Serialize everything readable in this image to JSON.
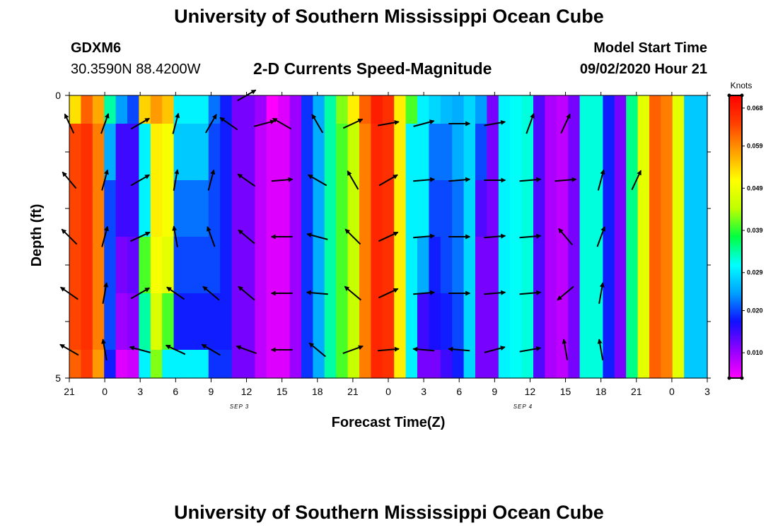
{
  "header": {
    "title": "University of Southern Mississippi Ocean Cube",
    "station_id": "GDXM6",
    "coordinates": "30.3590N 88.4200W",
    "plot_title": "2-D Currents Speed-Magnitude",
    "model_start_label": "Model Start Time",
    "model_start_value": "09/02/2020 Hour 21"
  },
  "footer": {
    "title": "University of Southern Mississippi Ocean Cube"
  },
  "chart_data": {
    "type": "heatmap",
    "title": "2-D Currents Speed-Magnitude",
    "xlabel": "Forecast Time(Z)",
    "ylabel": "Depth (ft)",
    "x_tick_labels": [
      "21",
      "0",
      "3",
      "6",
      "9",
      "12",
      "15",
      "18",
      "21",
      "0",
      "3",
      "6",
      "9",
      "12",
      "15",
      "18",
      "21",
      "0",
      "3"
    ],
    "date_labels": [
      {
        "label": "SEP 3",
        "tick_index": 4.8
      },
      {
        "label": "SEP 4",
        "tick_index": 12.8
      }
    ],
    "y_tick_labels": [
      "0",
      "",
      "",
      "",
      "",
      "5"
    ],
    "ylim": [
      0,
      5
    ],
    "hours_start": 21,
    "hours_end": 75,
    "depth_layers": 5,
    "colorbar": {
      "unit": "Knots",
      "tick_labels": [
        "0.068",
        "0.059",
        "0.049",
        "0.039",
        "0.029",
        "0.020",
        "0.010"
      ],
      "tick_values": [
        0.068,
        0.059,
        0.049,
        0.039,
        0.029,
        0.02,
        0.01
      ],
      "vmin": 0.004,
      "vmax": 0.071,
      "colors": [
        "#ff00ff",
        "#9000ff",
        "#1010ff",
        "#00a0ff",
        "#00ffff",
        "#00ff40",
        "#c0ff00",
        "#ffff00",
        "#ffa000",
        "#ff4000",
        "#ff0000"
      ]
    },
    "speed_knots_by_column": [
      [
        0.053,
        0.064,
        0.064,
        0.064,
        0.064,
        0.062
      ],
      [
        0.062,
        0.066,
        0.066,
        0.066,
        0.066,
        0.065
      ],
      [
        0.057,
        0.06,
        0.06,
        0.06,
        0.06,
        0.058
      ],
      [
        0.034,
        0.025,
        0.02,
        0.02,
        0.02,
        0.018
      ],
      [
        0.024,
        0.015,
        0.015,
        0.012,
        0.01,
        0.006
      ],
      [
        0.02,
        0.015,
        0.015,
        0.013,
        0.011,
        0.007
      ],
      [
        0.054,
        0.03,
        0.03,
        0.04,
        0.034,
        0.03
      ],
      [
        0.058,
        0.052,
        0.052,
        0.05,
        0.047,
        0.042
      ],
      [
        0.055,
        0.05,
        0.05,
        0.048,
        0.04,
        0.03
      ],
      [
        0.03,
        0.027,
        0.022,
        0.02,
        0.018,
        0.03
      ],
      [
        0.03,
        0.027,
        0.022,
        0.02,
        0.018,
        0.03
      ],
      [
        0.03,
        0.027,
        0.022,
        0.02,
        0.018,
        0.03
      ],
      [
        0.022,
        0.02,
        0.02,
        0.02,
        0.018,
        0.019
      ],
      [
        0.018,
        0.018,
        0.018,
        0.018,
        0.018,
        0.019
      ],
      [
        0.012,
        0.012,
        0.012,
        0.012,
        0.012,
        0.012
      ],
      [
        0.012,
        0.012,
        0.012,
        0.012,
        0.012,
        0.012
      ],
      [
        0.01,
        0.008,
        0.008,
        0.008,
        0.008,
        0.008
      ],
      [
        0.004,
        0.006,
        0.006,
        0.006,
        0.006,
        0.006
      ],
      [
        0.006,
        0.006,
        0.006,
        0.006,
        0.006,
        0.006
      ],
      [
        0.01,
        0.01,
        0.01,
        0.01,
        0.01,
        0.01
      ],
      [
        0.019,
        0.019,
        0.019,
        0.019,
        0.019,
        0.019
      ],
      [
        0.025,
        0.025,
        0.025,
        0.025,
        0.025,
        0.025
      ],
      [
        0.034,
        0.034,
        0.034,
        0.034,
        0.034,
        0.034
      ],
      [
        0.042,
        0.04,
        0.04,
        0.04,
        0.04,
        0.04
      ],
      [
        0.052,
        0.045,
        0.045,
        0.045,
        0.045,
        0.045
      ],
      [
        0.062,
        0.06,
        0.06,
        0.06,
        0.06,
        0.06
      ],
      [
        0.068,
        0.067,
        0.067,
        0.067,
        0.067,
        0.067
      ],
      [
        0.066,
        0.066,
        0.066,
        0.066,
        0.066,
        0.066
      ],
      [
        0.052,
        0.052,
        0.052,
        0.052,
        0.052,
        0.052
      ],
      [
        0.04,
        0.03,
        0.03,
        0.03,
        0.03,
        0.03
      ],
      [
        0.03,
        0.03,
        0.03,
        0.025,
        0.015,
        0.012
      ],
      [
        0.028,
        0.022,
        0.02,
        0.018,
        0.017,
        0.012
      ],
      [
        0.026,
        0.022,
        0.02,
        0.02,
        0.018,
        0.015
      ],
      [
        0.025,
        0.025,
        0.022,
        0.022,
        0.02,
        0.018
      ],
      [
        0.028,
        0.028,
        0.028,
        0.028,
        0.028,
        0.028
      ],
      [
        0.024,
        0.02,
        0.014,
        0.012,
        0.012,
        0.012
      ],
      [
        0.012,
        0.012,
        0.012,
        0.012,
        0.012,
        0.012
      ],
      [
        0.03,
        0.03,
        0.03,
        0.03,
        0.03,
        0.03
      ],
      [
        0.031,
        0.031,
        0.031,
        0.031,
        0.031,
        0.031
      ],
      [
        0.032,
        0.032,
        0.032,
        0.032,
        0.032,
        0.032
      ],
      [
        0.014,
        0.014,
        0.014,
        0.014,
        0.014,
        0.014
      ],
      [
        0.009,
        0.009,
        0.009,
        0.009,
        0.009,
        0.009
      ],
      [
        0.008,
        0.008,
        0.008,
        0.008,
        0.008,
        0.008
      ],
      [
        0.012,
        0.012,
        0.012,
        0.012,
        0.012,
        0.012
      ],
      [
        0.032,
        0.032,
        0.032,
        0.032,
        0.032,
        0.032
      ],
      [
        0.032,
        0.032,
        0.032,
        0.032,
        0.032,
        0.032
      ],
      [
        0.018,
        0.018,
        0.018,
        0.018,
        0.018,
        0.018
      ],
      [
        0.012,
        0.012,
        0.012,
        0.012,
        0.012,
        0.012
      ],
      [
        0.035,
        0.035,
        0.035,
        0.035,
        0.035,
        0.035
      ],
      [
        0.048,
        0.048,
        0.048,
        0.048,
        0.048,
        0.048
      ],
      [
        0.062,
        0.062,
        0.062,
        0.062,
        0.062,
        0.062
      ],
      [
        0.06,
        0.06,
        0.06,
        0.06,
        0.06,
        0.06
      ],
      [
        0.048,
        0.048,
        0.048,
        0.048,
        0.048,
        0.048
      ],
      [
        0.027,
        0.027,
        0.027,
        0.027,
        0.027,
        0.027
      ],
      [
        0.027,
        0.027,
        0.027,
        0.027,
        0.027,
        0.027
      ]
    ],
    "vectors": [
      {
        "hour": 21.0,
        "depth": 0.5,
        "angle_deg": 115,
        "mag": 0.05
      },
      {
        "hour": 24.0,
        "depth": 0.5,
        "angle_deg": 70,
        "mag": 0.05
      },
      {
        "hour": 27.0,
        "depth": 0.5,
        "angle_deg": 30,
        "mag": 0.05
      },
      {
        "hour": 30.0,
        "depth": 0.5,
        "angle_deg": 75,
        "mag": 0.05
      },
      {
        "hour": 33.0,
        "depth": 0.5,
        "angle_deg": 60,
        "mag": 0.05
      },
      {
        "hour": 34.5,
        "depth": 0.5,
        "angle_deg": 145,
        "mag": 0.05
      },
      {
        "hour": 36.0,
        "depth": 0.0,
        "angle_deg": 30,
        "mag": 0.05
      },
      {
        "hour": 37.5,
        "depth": 0.5,
        "angle_deg": 15,
        "mag": 0.05
      },
      {
        "hour": 39.0,
        "depth": 0.5,
        "angle_deg": 150,
        "mag": 0.05
      },
      {
        "hour": 42.0,
        "depth": 0.5,
        "angle_deg": 120,
        "mag": 0.05
      },
      {
        "hour": 45.0,
        "depth": 0.5,
        "angle_deg": 25,
        "mag": 0.05
      },
      {
        "hour": 48.0,
        "depth": 0.5,
        "angle_deg": 10,
        "mag": 0.05
      },
      {
        "hour": 51.0,
        "depth": 0.5,
        "angle_deg": 15,
        "mag": 0.05
      },
      {
        "hour": 54.0,
        "depth": 0.5,
        "angle_deg": 0,
        "mag": 0.05
      },
      {
        "hour": 57.0,
        "depth": 0.5,
        "angle_deg": 10,
        "mag": 0.05
      },
      {
        "hour": 60.0,
        "depth": 0.5,
        "angle_deg": 70,
        "mag": 0.05
      },
      {
        "hour": 63.0,
        "depth": 0.5,
        "angle_deg": 65,
        "mag": 0.05
      },
      {
        "hour": 21.0,
        "depth": 1.5,
        "angle_deg": 130,
        "mag": 0.05
      },
      {
        "hour": 24.0,
        "depth": 1.5,
        "angle_deg": 75,
        "mag": 0.05
      },
      {
        "hour": 27.0,
        "depth": 1.5,
        "angle_deg": 30,
        "mag": 0.05
      },
      {
        "hour": 30.0,
        "depth": 1.5,
        "angle_deg": 80,
        "mag": 0.05
      },
      {
        "hour": 33.0,
        "depth": 1.5,
        "angle_deg": 75,
        "mag": 0.05
      },
      {
        "hour": 36.0,
        "depth": 1.5,
        "angle_deg": 145,
        "mag": 0.05
      },
      {
        "hour": 39.0,
        "depth": 1.5,
        "angle_deg": 5,
        "mag": 0.05
      },
      {
        "hour": 42.0,
        "depth": 1.5,
        "angle_deg": 150,
        "mag": 0.05
      },
      {
        "hour": 45.0,
        "depth": 1.5,
        "angle_deg": 120,
        "mag": 0.05
      },
      {
        "hour": 48.0,
        "depth": 1.5,
        "angle_deg": 30,
        "mag": 0.05
      },
      {
        "hour": 51.0,
        "depth": 1.5,
        "angle_deg": 5,
        "mag": 0.05
      },
      {
        "hour": 54.0,
        "depth": 1.5,
        "angle_deg": 5,
        "mag": 0.05
      },
      {
        "hour": 57.0,
        "depth": 1.5,
        "angle_deg": 0,
        "mag": 0.05
      },
      {
        "hour": 60.0,
        "depth": 1.5,
        "angle_deg": 5,
        "mag": 0.05
      },
      {
        "hour": 63.0,
        "depth": 1.5,
        "angle_deg": 5,
        "mag": 0.05
      },
      {
        "hour": 66.0,
        "depth": 1.5,
        "angle_deg": 75,
        "mag": 0.05
      },
      {
        "hour": 69.0,
        "depth": 1.5,
        "angle_deg": 65,
        "mag": 0.05
      },
      {
        "hour": 21.0,
        "depth": 2.5,
        "angle_deg": 135,
        "mag": 0.05
      },
      {
        "hour": 24.0,
        "depth": 2.5,
        "angle_deg": 75,
        "mag": 0.05
      },
      {
        "hour": 27.0,
        "depth": 2.5,
        "angle_deg": 25,
        "mag": 0.05
      },
      {
        "hour": 30.0,
        "depth": 2.5,
        "angle_deg": 100,
        "mag": 0.05
      },
      {
        "hour": 33.0,
        "depth": 2.5,
        "angle_deg": 110,
        "mag": 0.05
      },
      {
        "hour": 36.0,
        "depth": 2.5,
        "angle_deg": 140,
        "mag": 0.05
      },
      {
        "hour": 39.0,
        "depth": 2.5,
        "angle_deg": 180,
        "mag": 0.05
      },
      {
        "hour": 42.0,
        "depth": 2.5,
        "angle_deg": 165,
        "mag": 0.05
      },
      {
        "hour": 45.0,
        "depth": 2.5,
        "angle_deg": 135,
        "mag": 0.05
      },
      {
        "hour": 48.0,
        "depth": 2.5,
        "angle_deg": 25,
        "mag": 0.05
      },
      {
        "hour": 51.0,
        "depth": 2.5,
        "angle_deg": 5,
        "mag": 0.05
      },
      {
        "hour": 54.0,
        "depth": 2.5,
        "angle_deg": 0,
        "mag": 0.05
      },
      {
        "hour": 57.0,
        "depth": 2.5,
        "angle_deg": 5,
        "mag": 0.05
      },
      {
        "hour": 60.0,
        "depth": 2.5,
        "angle_deg": 5,
        "mag": 0.05
      },
      {
        "hour": 63.0,
        "depth": 2.5,
        "angle_deg": 130,
        "mag": 0.05
      },
      {
        "hour": 66.0,
        "depth": 2.5,
        "angle_deg": 70,
        "mag": 0.05
      },
      {
        "hour": 21.0,
        "depth": 3.5,
        "angle_deg": 145,
        "mag": 0.05
      },
      {
        "hour": 24.0,
        "depth": 3.5,
        "angle_deg": 80,
        "mag": 0.05
      },
      {
        "hour": 27.0,
        "depth": 3.5,
        "angle_deg": 30,
        "mag": 0.05
      },
      {
        "hour": 30.0,
        "depth": 3.5,
        "angle_deg": 145,
        "mag": 0.05
      },
      {
        "hour": 33.0,
        "depth": 3.5,
        "angle_deg": 140,
        "mag": 0.05
      },
      {
        "hour": 36.0,
        "depth": 3.5,
        "angle_deg": 140,
        "mag": 0.05
      },
      {
        "hour": 39.0,
        "depth": 3.5,
        "angle_deg": 180,
        "mag": 0.05
      },
      {
        "hour": 42.0,
        "depth": 3.5,
        "angle_deg": 175,
        "mag": 0.05
      },
      {
        "hour": 45.0,
        "depth": 3.5,
        "angle_deg": 140,
        "mag": 0.05
      },
      {
        "hour": 48.0,
        "depth": 3.5,
        "angle_deg": 25,
        "mag": 0.05
      },
      {
        "hour": 51.0,
        "depth": 3.5,
        "angle_deg": 5,
        "mag": 0.05
      },
      {
        "hour": 54.0,
        "depth": 3.5,
        "angle_deg": 0,
        "mag": 0.05
      },
      {
        "hour": 57.0,
        "depth": 3.5,
        "angle_deg": 5,
        "mag": 0.05
      },
      {
        "hour": 60.0,
        "depth": 3.5,
        "angle_deg": 5,
        "mag": 0.05
      },
      {
        "hour": 63.0,
        "depth": 3.5,
        "angle_deg": 220,
        "mag": 0.05
      },
      {
        "hour": 66.0,
        "depth": 3.5,
        "angle_deg": 80,
        "mag": 0.05
      },
      {
        "hour": 21.0,
        "depth": 4.5,
        "angle_deg": 150,
        "mag": 0.05
      },
      {
        "hour": 24.0,
        "depth": 4.5,
        "angle_deg": 100,
        "mag": 0.05
      },
      {
        "hour": 27.0,
        "depth": 4.5,
        "angle_deg": 165,
        "mag": 0.05
      },
      {
        "hour": 30.0,
        "depth": 4.5,
        "angle_deg": 155,
        "mag": 0.05
      },
      {
        "hour": 33.0,
        "depth": 4.5,
        "angle_deg": 150,
        "mag": 0.05
      },
      {
        "hour": 36.0,
        "depth": 4.5,
        "angle_deg": 160,
        "mag": 0.05
      },
      {
        "hour": 39.0,
        "depth": 4.5,
        "angle_deg": 180,
        "mag": 0.05
      },
      {
        "hour": 42.0,
        "depth": 4.5,
        "angle_deg": 140,
        "mag": 0.05
      },
      {
        "hour": 45.0,
        "depth": 4.5,
        "angle_deg": 20,
        "mag": 0.05
      },
      {
        "hour": 48.0,
        "depth": 4.5,
        "angle_deg": 5,
        "mag": 0.05
      },
      {
        "hour": 51.0,
        "depth": 4.5,
        "angle_deg": 175,
        "mag": 0.05
      },
      {
        "hour": 54.0,
        "depth": 4.5,
        "angle_deg": 175,
        "mag": 0.05
      },
      {
        "hour": 57.0,
        "depth": 4.5,
        "angle_deg": 15,
        "mag": 0.05
      },
      {
        "hour": 60.0,
        "depth": 4.5,
        "angle_deg": 10,
        "mag": 0.05
      },
      {
        "hour": 63.0,
        "depth": 4.5,
        "angle_deg": 100,
        "mag": 0.05
      },
      {
        "hour": 66.0,
        "depth": 4.5,
        "angle_deg": 100,
        "mag": 0.05
      }
    ]
  }
}
